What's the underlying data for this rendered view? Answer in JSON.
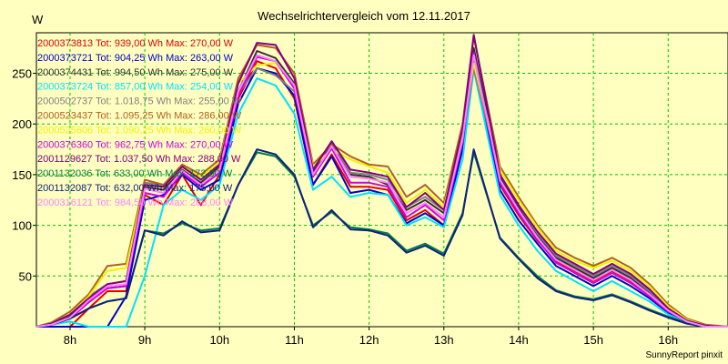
{
  "chart_data": {
    "type": "line",
    "title": "Wechselrichtervergleich vom 12.11.2017",
    "ylabel": "W",
    "xlabel": "",
    "footer": "SunnyReport pinxit",
    "xlim": [
      7.55,
      16.8
    ],
    "ylim": [
      0,
      290
    ],
    "x_ticks": [
      8,
      9,
      10,
      11,
      12,
      13,
      14,
      15,
      16
    ],
    "x_tick_labels": [
      "8h",
      "9h",
      "10h",
      "11h",
      "12h",
      "13h",
      "14h",
      "15h",
      "16h"
    ],
    "y_ticks": [
      50,
      100,
      150,
      200,
      250
    ],
    "grid": true,
    "legend_position": "top-left",
    "x": [
      7.55,
      7.75,
      8.0,
      8.25,
      8.5,
      8.75,
      9.0,
      9.25,
      9.5,
      9.75,
      10.0,
      10.25,
      10.5,
      10.75,
      11.0,
      11.25,
      11.5,
      11.75,
      12.0,
      12.25,
      12.5,
      12.75,
      13.0,
      13.25,
      13.4,
      13.75,
      14.0,
      14.25,
      14.5,
      14.75,
      15.0,
      15.25,
      15.5,
      15.75,
      16.0,
      16.25,
      16.5,
      16.8
    ],
    "series": [
      {
        "name": "2000373813 Tot: 939,00 Wh Max: 270,00 W",
        "color": "#e00000",
        "values": [
          0,
          0,
          0,
          18,
          35,
          35,
          130,
          120,
          150,
          120,
          150,
          225,
          262,
          255,
          225,
          140,
          170,
          138,
          138,
          135,
          105,
          115,
          100,
          180,
          270,
          140,
          110,
          85,
          65,
          55,
          45,
          55,
          45,
          30,
          15,
          5,
          0,
          0
        ]
      },
      {
        "name": "2000373721 Tot: 904,25 Wh Max: 263,00 W",
        "color": "#0000d0",
        "values": [
          0,
          0,
          0,
          0,
          0,
          30,
          125,
          130,
          150,
          135,
          145,
          220,
          255,
          250,
          228,
          140,
          168,
          132,
          135,
          130,
          102,
          112,
          100,
          175,
          262,
          135,
          105,
          82,
          60,
          50,
          40,
          50,
          40,
          28,
          14,
          4,
          0,
          0
        ]
      },
      {
        "name": "2000374431 Tot: 994,50 Wh Max: 275,00 W",
        "color": "#303030",
        "values": [
          0,
          2,
          10,
          28,
          38,
          40,
          138,
          135,
          155,
          142,
          158,
          232,
          272,
          265,
          240,
          152,
          180,
          150,
          148,
          140,
          115,
          125,
          112,
          190,
          275,
          148,
          118,
          90,
          68,
          58,
          48,
          58,
          48,
          33,
          16,
          6,
          1,
          0
        ]
      },
      {
        "name": "2000373724 Tot: 857,00 Wh Max: 254,00 W",
        "color": "#00e0ff",
        "values": [
          0,
          2,
          5,
          0,
          0,
          0,
          50,
          120,
          135,
          125,
          140,
          210,
          245,
          238,
          210,
          135,
          148,
          128,
          132,
          130,
          100,
          108,
          98,
          165,
          254,
          130,
          100,
          75,
          55,
          45,
          35,
          45,
          35,
          25,
          12,
          4,
          0,
          0
        ]
      },
      {
        "name": "2000502737 Tot: 1.018,75 Wh Max: 255,00 W",
        "color": "#808080",
        "values": [
          0,
          3,
          12,
          30,
          42,
          45,
          142,
          140,
          158,
          145,
          160,
          230,
          255,
          248,
          232,
          155,
          182,
          152,
          150,
          145,
          118,
          128,
          115,
          185,
          255,
          150,
          120,
          92,
          70,
          60,
          50,
          60,
          50,
          35,
          18,
          6,
          1,
          0
        ]
      },
      {
        "name": "2000523437 Tot: 1.095,25 Wh Max: 286,00 W",
        "color": "#b06020",
        "values": [
          0,
          4,
          15,
          32,
          60,
          62,
          145,
          140,
          160,
          150,
          165,
          245,
          278,
          275,
          250,
          160,
          180,
          168,
          160,
          158,
          128,
          140,
          122,
          200,
          286,
          158,
          128,
          100,
          78,
          68,
          60,
          68,
          58,
          42,
          22,
          8,
          2,
          0
        ]
      },
      {
        "name": "2000525606 Tot: 1.090,25 Wh Max: 260,00 W",
        "color": "#f0f000",
        "values": [
          0,
          3,
          12,
          30,
          55,
          58,
          140,
          138,
          158,
          148,
          162,
          240,
          258,
          260,
          238,
          158,
          175,
          165,
          158,
          152,
          122,
          135,
          118,
          192,
          260,
          155,
          125,
          98,
          75,
          65,
          58,
          65,
          55,
          40,
          20,
          7,
          1,
          0
        ]
      },
      {
        "name": "2000376360 Tot: 962,75 Wh Max: 270,00 W",
        "color": "#d000e0",
        "values": [
          0,
          2,
          8,
          24,
          38,
          40,
          132,
          128,
          152,
          138,
          152,
          228,
          266,
          262,
          235,
          148,
          176,
          142,
          142,
          138,
          108,
          120,
          105,
          182,
          270,
          142,
          112,
          86,
          63,
          53,
          43,
          53,
          43,
          30,
          15,
          5,
          0,
          0
        ]
      },
      {
        "name": "2001129627 Tot: 1.037,50 Wh Max: 288,00 W",
        "color": "#800080",
        "values": [
          0,
          3,
          12,
          28,
          42,
          45,
          140,
          138,
          158,
          145,
          160,
          240,
          280,
          278,
          245,
          155,
          183,
          155,
          152,
          148,
          118,
          132,
          115,
          195,
          288,
          150,
          120,
          94,
          72,
          62,
          52,
          62,
          52,
          37,
          18,
          6,
          1,
          0
        ]
      },
      {
        "name": "2001132036 Tot: 633,00 Wh Max: 172,00 W",
        "color": "#008040",
        "values": [
          0,
          2,
          8,
          18,
          25,
          28,
          95,
          92,
          102,
          95,
          97,
          140,
          172,
          168,
          148,
          100,
          113,
          98,
          96,
          92,
          75,
          82,
          72,
          112,
          172,
          88,
          68,
          50,
          36,
          30,
          27,
          32,
          25,
          17,
          10,
          4,
          0,
          0
        ]
      },
      {
        "name": "2001132087 Tot: 632,00 Wh Max: 175,00 W",
        "color": "#102080",
        "values": [
          0,
          2,
          8,
          18,
          25,
          28,
          95,
          90,
          104,
          93,
          95,
          140,
          175,
          170,
          150,
          98,
          115,
          96,
          95,
          90,
          73,
          80,
          70,
          110,
          175,
          87,
          67,
          48,
          35,
          29,
          26,
          31,
          24,
          16,
          9,
          3,
          0,
          0
        ]
      },
      {
        "name": "2000316121 Tot: 984,50 Wh Max: 268,00 W",
        "color": "#ff80ff",
        "values": [
          0,
          2,
          9,
          26,
          40,
          42,
          136,
          132,
          154,
          140,
          155,
          232,
          268,
          262,
          238,
          150,
          178,
          148,
          146,
          142,
          112,
          122,
          108,
          185,
          268,
          145,
          115,
          88,
          66,
          56,
          46,
          56,
          46,
          32,
          16,
          5,
          0,
          0
        ]
      }
    ]
  }
}
